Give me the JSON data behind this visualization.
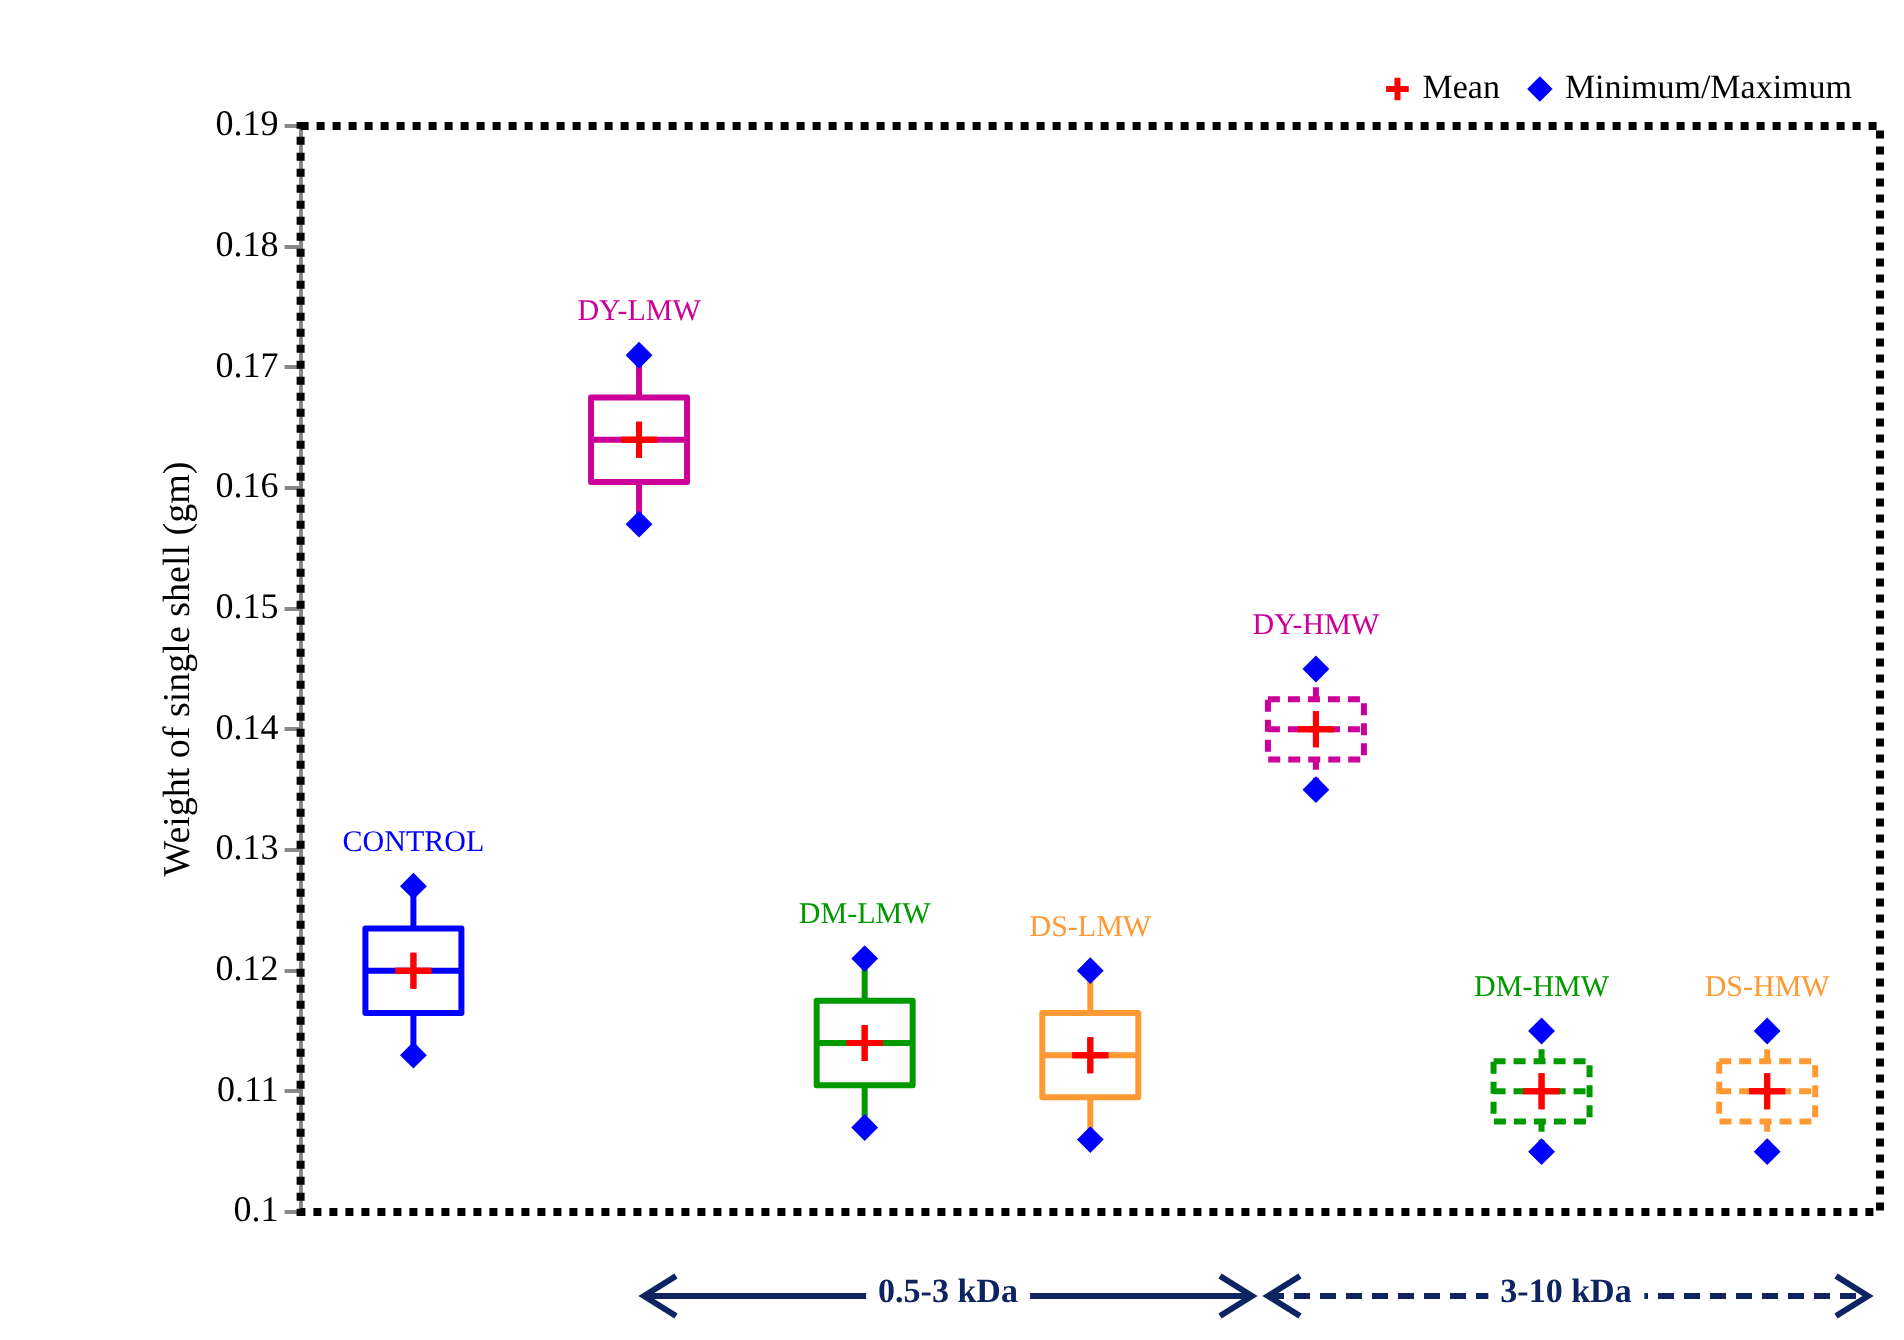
{
  "chart_data": {
    "type": "box",
    "ylabel": "Weight of single shell (gm)",
    "categories": [
      "CONTROL",
      "DY-LMW",
      "DM-LMW",
      "DS-LMW",
      "DY-HMW",
      "DM-HMW",
      "DS-HMW"
    ],
    "ylim": [
      0.1,
      0.19
    ],
    "yticks": [
      0.1,
      0.11,
      0.12,
      0.13,
      0.14,
      0.15,
      0.16,
      0.17,
      0.18,
      0.19
    ],
    "grid": false,
    "legend": "top right",
    "tick_labels": "y",
    "series": [
      {
        "type": "box",
        "line_style": "solid",
        "colors": [
          "#0000ff",
          "#cc0099",
          "#009900",
          "#ff9933",
          null,
          null,
          null
        ],
        "boxes": [
          {
            "low": 0.113,
            "q1": 0.1165,
            "median": 0.12,
            "q3": 0.1235,
            "high": 0.127
          },
          {
            "low": 0.157,
            "q1": 0.1605,
            "median": 0.164,
            "q3": 0.1675,
            "high": 0.171
          },
          {
            "low": 0.107,
            "q1": 0.1105,
            "median": 0.114,
            "q3": 0.1175,
            "high": 0.121
          },
          {
            "low": 0.106,
            "q1": 0.1095,
            "median": 0.113,
            "q3": 0.1165,
            "high": 0.12
          },
          null,
          null,
          null
        ]
      },
      {
        "type": "box",
        "line_style": "dashed",
        "colors": [
          null,
          null,
          null,
          null,
          "#cc0099",
          "#009900",
          "#ff9933"
        ],
        "boxes": [
          null,
          null,
          null,
          null,
          {
            "low": 0.135,
            "q1": 0.1375,
            "median": 0.14,
            "q3": 0.1425,
            "high": 0.145
          },
          {
            "low": 0.105,
            "q1": 0.1075,
            "median": 0.11,
            "q3": 0.1125,
            "high": 0.115
          },
          {
            "low": 0.105,
            "q1": 0.1075,
            "median": 0.11,
            "q3": 0.1125,
            "high": 0.115
          }
        ]
      },
      {
        "type": "scatter",
        "name": "Mean",
        "color": "#ff0000",
        "marker": "cross",
        "x": [
          "CONTROL",
          "DY-LMW",
          "DM-LMW",
          "DS-LMW",
          "DY-HMW",
          "DM-HMW",
          "DS-HMW"
        ],
        "values": [
          0.12,
          0.164,
          0.114,
          0.113,
          0.14,
          0.11,
          0.11
        ]
      },
      {
        "type": "scatter",
        "name": "Minimum/Maximum",
        "color": "#0000ff",
        "marker": "diamond",
        "x": [
          "CONTROL",
          "CONTROL",
          "DY-LMW",
          "DY-LMW",
          "DM-LMW",
          "DM-LMW",
          "DS-LMW",
          "DS-LMW",
          "DY-HMW",
          "DY-HMW",
          "DM-HMW",
          "DM-HMW",
          "DS-HMW",
          "DS-HMW"
        ],
        "values": [
          0.113,
          0.127,
          0.157,
          0.171,
          0.107,
          0.121,
          0.106,
          0.12,
          0.135,
          0.145,
          0.105,
          0.115,
          0.105,
          0.115
        ]
      }
    ],
    "annotations": [
      "0.5-3 kDa",
      "3-10 kDa"
    ]
  }
}
